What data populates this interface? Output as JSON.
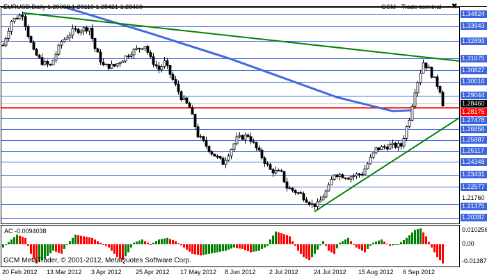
{
  "header": {
    "symbol_info": "EURUSD,Daily  1.29000 1.29119 1.28421 1.28460",
    "terminal_label": "GCM - Trade terminal",
    "close_icon": "close-icon"
  },
  "indicator": {
    "label": "AC -0.0094038",
    "axis": [
      "0.010256",
      "0.00",
      "-0.01387"
    ]
  },
  "watermark": "GCM MetaTrader, © 2001-2012, MetaQuotes Software Corp.",
  "colors": {
    "level_line": "#3c64dc",
    "label_bg": "#3c64dc",
    "red_line": "#ff0000",
    "trend": "#008000",
    "ma": "#4169e1",
    "ac_up": "#008000",
    "ac_down": "#ff0000"
  },
  "price_levels": [
    "1.34824",
    "1.33943",
    "1.32893",
    "1.31675",
    "1.30827",
    "1.30016",
    "1.29044",
    "1.27478",
    "1.26656",
    "1.25887",
    "1.25117",
    "1.24348",
    "1.23431",
    "1.22577",
    "1.21375",
    "1.20387"
  ],
  "current_price": "1.28460",
  "red_level": "1.28176",
  "axis_partial_labels": [
    "1.21760"
  ],
  "dates": [
    "20 Feb 2012",
    "13 Mar 2012",
    "3 Apr 2012",
    "25 Apr 2012",
    "17 May 2012",
    "8 Jun 2012",
    "2 Jul 2012",
    "24 Jul 2012",
    "15 Aug 2012",
    "6 Sep 2012"
  ],
  "price_path": [
    [
      0,
      1.3261
    ],
    [
      3,
      1.3433
    ],
    [
      7,
      1.3482
    ],
    [
      9,
      1.3335
    ],
    [
      11,
      1.3212
    ],
    [
      14,
      1.3139
    ],
    [
      17,
      1.3114
    ],
    [
      21,
      1.3286
    ],
    [
      25,
      1.336
    ],
    [
      31,
      1.3384
    ],
    [
      33,
      1.3237
    ],
    [
      36,
      1.3114
    ],
    [
      40,
      1.3114
    ],
    [
      43,
      1.3163
    ],
    [
      46,
      1.3212
    ],
    [
      51,
      1.3261
    ],
    [
      53,
      1.3163
    ],
    [
      56,
      1.309
    ],
    [
      58,
      1.3139
    ],
    [
      64,
      1.2893
    ],
    [
      67,
      1.2819
    ],
    [
      70,
      1.2623
    ],
    [
      75,
      1.25
    ],
    [
      79,
      1.2427
    ],
    [
      84,
      1.2598
    ],
    [
      88,
      1.2623
    ],
    [
      92,
      1.25
    ],
    [
      96,
      1.2377
    ],
    [
      100,
      1.2353
    ],
    [
      102,
      1.2255
    ],
    [
      107,
      1.2205
    ],
    [
      111,
      1.2132
    ],
    [
      113,
      1.2132
    ],
    [
      117,
      1.2255
    ],
    [
      119,
      1.2353
    ],
    [
      124,
      1.2328
    ],
    [
      129,
      1.2353
    ],
    [
      134,
      1.2525
    ],
    [
      139,
      1.2549
    ],
    [
      143,
      1.2549
    ],
    [
      146,
      1.2746
    ],
    [
      148,
      1.2943
    ],
    [
      151,
      1.3139
    ],
    [
      153,
      1.309
    ],
    [
      157,
      1.2943
    ],
    [
      158,
      1.2846
    ]
  ],
  "moving_average": [
    [
      22,
      1.3531
    ],
    [
      53,
      1.3345
    ],
    [
      82,
      1.3163
    ],
    [
      120,
      1.2893
    ],
    [
      140,
      1.2795
    ],
    [
      147,
      1.28
    ]
  ],
  "trendlines": [
    {
      "from": [
        7,
        1.349
      ],
      "to": [
        164,
        1.3149
      ]
    },
    {
      "from": [
        112,
        1.2083
      ],
      "to": [
        164,
        1.2746
      ]
    }
  ],
  "ac_path": [
    [
      0,
      -0.002
    ],
    [
      3,
      0.003
    ],
    [
      5,
      0.006
    ],
    [
      8,
      0.004
    ],
    [
      10,
      -0.006
    ],
    [
      12,
      -0.012
    ],
    [
      15,
      -0.009
    ],
    [
      18,
      -0.004
    ],
    [
      21,
      -0.006
    ],
    [
      23,
      0.0
    ],
    [
      26,
      0.006
    ],
    [
      29,
      0.005
    ],
    [
      32,
      0.004
    ],
    [
      35,
      0.001
    ],
    [
      38,
      -0.002
    ],
    [
      41,
      -0.008
    ],
    [
      43,
      -0.01
    ],
    [
      45,
      -0.005
    ],
    [
      47,
      0.001
    ],
    [
      50,
      0.003
    ],
    [
      53,
      0.0
    ],
    [
      56,
      0.003
    ],
    [
      59,
      0.004
    ],
    [
      62,
      0.002
    ],
    [
      65,
      -0.002
    ],
    [
      68,
      -0.006
    ],
    [
      71,
      -0.007
    ],
    [
      74,
      -0.006
    ],
    [
      77,
      -0.005
    ],
    [
      80,
      -0.004
    ],
    [
      83,
      -0.002
    ],
    [
      86,
      -0.003
    ],
    [
      89,
      -0.005
    ],
    [
      92,
      -0.004
    ],
    [
      95,
      -0.001
    ],
    [
      96,
      0.003
    ],
    [
      98,
      0.008
    ],
    [
      100,
      0.007
    ],
    [
      103,
      0.005
    ],
    [
      106,
      -0.004
    ],
    [
      108,
      -0.008
    ],
    [
      110,
      -0.01
    ],
    [
      112,
      -0.006
    ],
    [
      115,
      0.002
    ],
    [
      117,
      -0.004
    ],
    [
      119,
      -0.006
    ],
    [
      121,
      0.001
    ],
    [
      124,
      0.004
    ],
    [
      127,
      -0.002
    ],
    [
      130,
      -0.005
    ],
    [
      133,
      0.001
    ],
    [
      136,
      0.003
    ],
    [
      139,
      -0.001
    ],
    [
      142,
      0.0
    ],
    [
      145,
      0.004
    ],
    [
      148,
      0.009
    ],
    [
      150,
      0.01
    ],
    [
      152,
      0.005
    ],
    [
      154,
      -0.002
    ],
    [
      156,
      -0.008
    ],
    [
      158,
      -0.012
    ]
  ]
}
